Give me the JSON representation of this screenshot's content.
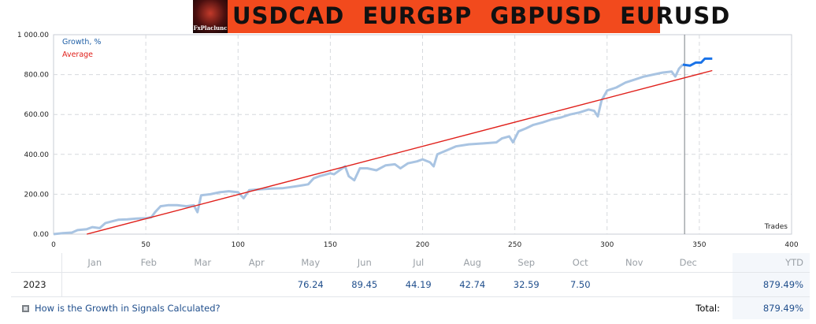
{
  "banner": {
    "logo_text": "FxPlaclunc",
    "pairs_text": "USDCAD EURGBP GBPUSD EURUSD"
  },
  "chart_data": {
    "type": "line",
    "xlabel": "Trades",
    "xlim": [
      0,
      400
    ],
    "ylim": [
      0,
      1000
    ],
    "x_ticks": [
      0,
      50,
      100,
      150,
      200,
      250,
      300,
      350,
      400
    ],
    "y_ticks": [
      "0.00",
      "200.00",
      "400.00",
      "600.00",
      "800.00",
      "1 000.00"
    ],
    "y_tick_values": [
      0,
      200,
      400,
      600,
      800,
      1000
    ],
    "grid": true,
    "legend_position": "top-left",
    "marker_x": 342,
    "series": [
      {
        "name": "Growth, %",
        "color": "#a9c4e2",
        "points": [
          [
            0,
            0
          ],
          [
            5,
            5
          ],
          [
            10,
            8
          ],
          [
            13,
            20
          ],
          [
            18,
            25
          ],
          [
            21,
            35
          ],
          [
            25,
            30
          ],
          [
            28,
            55
          ],
          [
            32,
            65
          ],
          [
            35,
            72
          ],
          [
            40,
            74
          ],
          [
            45,
            78
          ],
          [
            50,
            80
          ],
          [
            53,
            85
          ],
          [
            55,
            110
          ],
          [
            58,
            140
          ],
          [
            62,
            145
          ],
          [
            67,
            145
          ],
          [
            72,
            140
          ],
          [
            76,
            145
          ],
          [
            78,
            110
          ],
          [
            80,
            195
          ],
          [
            85,
            200
          ],
          [
            90,
            210
          ],
          [
            95,
            215
          ],
          [
            100,
            210
          ],
          [
            103,
            180
          ],
          [
            106,
            220
          ],
          [
            112,
            225
          ],
          [
            118,
            228
          ],
          [
            124,
            230
          ],
          [
            130,
            238
          ],
          [
            135,
            245
          ],
          [
            138,
            250
          ],
          [
            141,
            280
          ],
          [
            144,
            290
          ],
          [
            148,
            300
          ],
          [
            150,
            305
          ],
          [
            152,
            300
          ],
          [
            155,
            320
          ],
          [
            158,
            340
          ],
          [
            160,
            290
          ],
          [
            163,
            270
          ],
          [
            166,
            330
          ],
          [
            170,
            330
          ],
          [
            175,
            320
          ],
          [
            180,
            345
          ],
          [
            185,
            350
          ],
          [
            188,
            330
          ],
          [
            192,
            355
          ],
          [
            197,
            365
          ],
          [
            200,
            375
          ],
          [
            204,
            360
          ],
          [
            206,
            340
          ],
          [
            208,
            400
          ],
          [
            213,
            420
          ],
          [
            218,
            440
          ],
          [
            225,
            450
          ],
          [
            233,
            455
          ],
          [
            240,
            460
          ],
          [
            243,
            480
          ],
          [
            247,
            490
          ],
          [
            249,
            460
          ],
          [
            252,
            515
          ],
          [
            256,
            530
          ],
          [
            260,
            548
          ],
          [
            265,
            560
          ],
          [
            270,
            575
          ],
          [
            275,
            585
          ],
          [
            280,
            600
          ],
          [
            285,
            610
          ],
          [
            290,
            625
          ],
          [
            293,
            618
          ],
          [
            295,
            590
          ],
          [
            297,
            670
          ],
          [
            300,
            720
          ],
          [
            305,
            735
          ],
          [
            310,
            760
          ],
          [
            315,
            775
          ],
          [
            320,
            790
          ],
          [
            325,
            800
          ],
          [
            330,
            810
          ],
          [
            335,
            815
          ],
          [
            337,
            790
          ],
          [
            339,
            830
          ],
          [
            341,
            850
          ]
        ]
      },
      {
        "name": "",
        "color": "#1a73e8",
        "points": [
          [
            341,
            850
          ],
          [
            345,
            845
          ],
          [
            348,
            860
          ],
          [
            351,
            860
          ],
          [
            353,
            880
          ],
          [
            357,
            880
          ]
        ]
      },
      {
        "name": "Average",
        "color": "#e0201b",
        "points": [
          [
            18,
            0
          ],
          [
            357,
            820
          ]
        ]
      }
    ]
  },
  "table": {
    "header_blank": "",
    "months": [
      "Jan",
      "Feb",
      "Mar",
      "Apr",
      "May",
      "Jun",
      "Jul",
      "Aug",
      "Sep",
      "Oct",
      "Nov",
      "Dec"
    ],
    "ytd_label": "YTD",
    "year": "2023",
    "values": [
      "",
      "",
      "",
      "",
      "76.24",
      "89.45",
      "44.19",
      "42.74",
      "32.59",
      "7.50",
      "",
      ""
    ],
    "ytd_value": "879.49%",
    "faq_text": "How is the Growth in Signals Calculated?",
    "total_label": "Total:",
    "total_value": "879.49%"
  }
}
